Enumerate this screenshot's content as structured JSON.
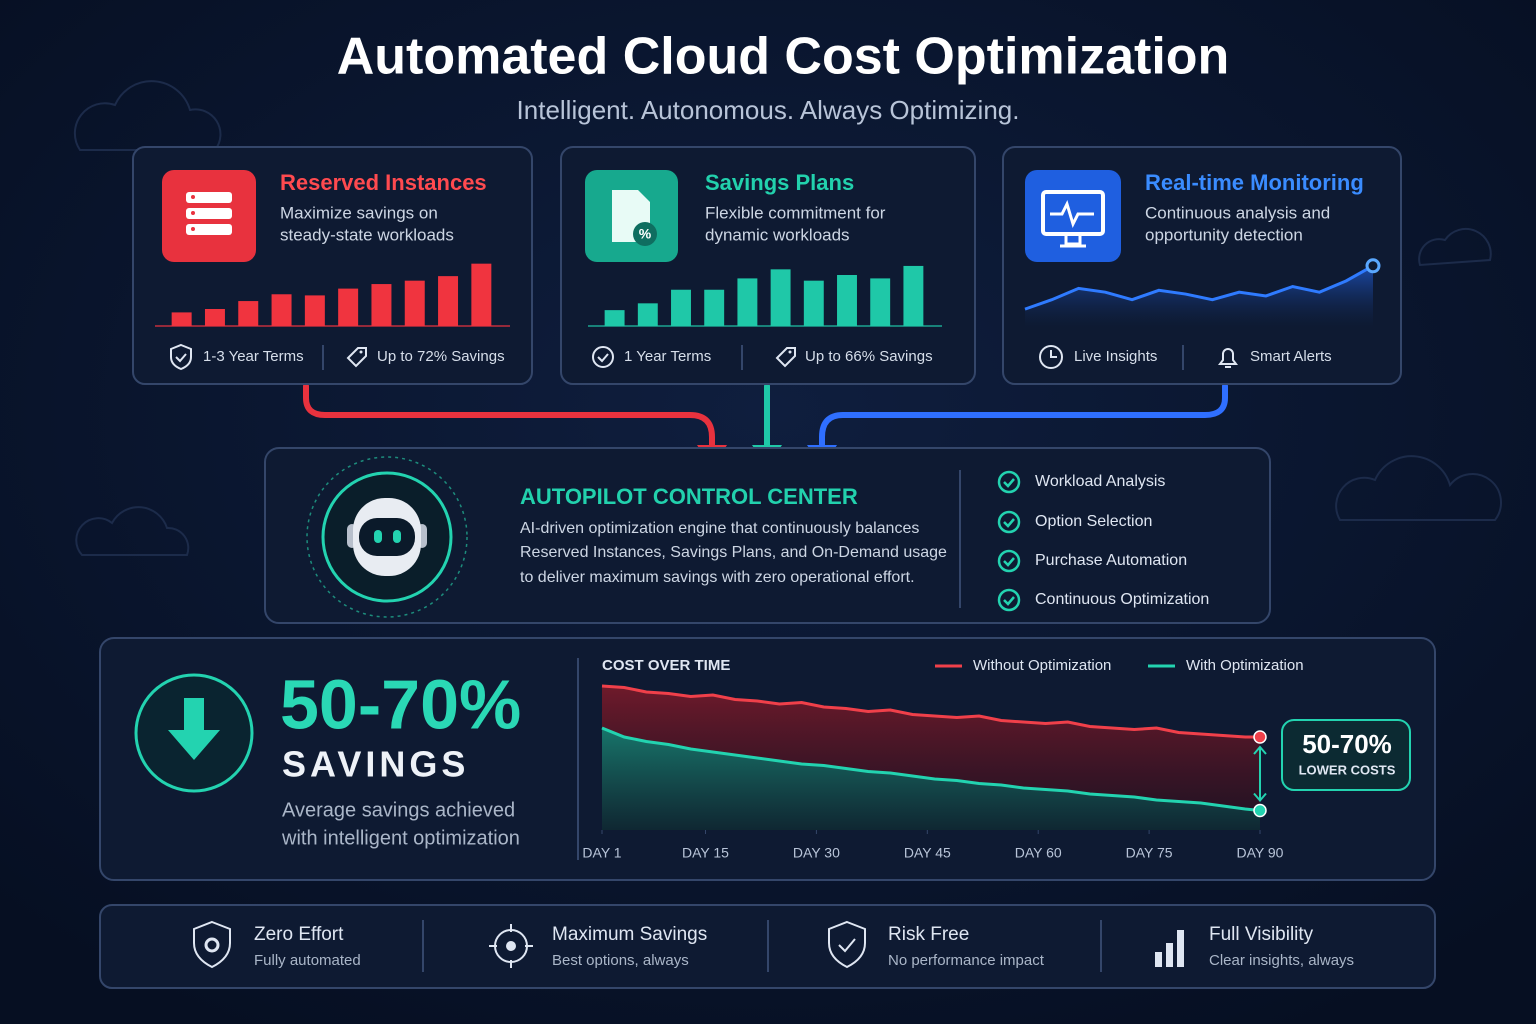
{
  "header": {
    "title": "Automated Cloud Cost Optimization",
    "subtitle": "Intelligent. Autonomous. Always Optimizing."
  },
  "cards": [
    {
      "title": "Reserved Instances",
      "description": [
        "Maximize savings on",
        "steady-state workloads"
      ],
      "features": [
        "1-3 Year Terms",
        "Up to 72% Savings"
      ]
    },
    {
      "title": "Savings Plans",
      "description": [
        "Flexible commitment for",
        "dynamic workloads"
      ],
      "features": [
        "1 Year Terms",
        "Up to 66% Savings"
      ]
    },
    {
      "title": "Real-time Monitoring",
      "description": [
        "Continuous analysis and",
        "opportunity detection"
      ],
      "features": [
        "Live Insights",
        "Smart Alerts"
      ]
    }
  ],
  "autopilot": {
    "title": "AUTOPILOT CONTROL CENTER",
    "description": [
      "AI-driven optimization engine that continuously balances",
      "Reserved Instances, Savings Plans, and On-Demand usage",
      "to deliver maximum savings with zero operational effort."
    ],
    "checklist": [
      "Workload Analysis",
      "Option Selection",
      "Purchase Automation",
      "Continuous Optimization"
    ]
  },
  "savings": {
    "value": "50-70%",
    "label": "SAVINGS",
    "description": [
      "Average savings achieved",
      "with intelligent optimization"
    ]
  },
  "benefits": [
    {
      "title": "Zero Effort",
      "subtitle": "Fully automated"
    },
    {
      "title": "Maximum Savings",
      "subtitle": "Best options, always"
    },
    {
      "title": "Risk Free",
      "subtitle": "No performance impact"
    },
    {
      "title": "Full Visibility",
      "subtitle": "Clear insights, always"
    }
  ],
  "chart_data": [
    {
      "type": "bar",
      "values": [
        12,
        15,
        22,
        28,
        27,
        33,
        37,
        40,
        44,
        55
      ],
      "color": "#f0343f",
      "ylim": [
        0,
        60
      ]
    },
    {
      "type": "bar",
      "values": [
        14,
        20,
        32,
        32,
        42,
        50,
        40,
        45,
        42,
        53
      ],
      "color": "#1fc8a8",
      "ylim": [
        0,
        60
      ]
    },
    {
      "type": "area",
      "values": [
        20,
        30,
        42,
        38,
        30,
        40,
        36,
        30,
        38,
        34,
        44,
        38,
        50,
        66
      ],
      "color": "#2f7bff",
      "ylim": [
        0,
        70
      ]
    },
    {
      "type": "line",
      "title": "COST OVER TIME",
      "x": [
        1,
        4,
        7,
        10,
        13,
        16,
        19,
        22,
        25,
        28,
        31,
        34,
        37,
        40,
        43,
        46,
        49,
        52,
        55,
        58,
        61,
        64,
        67,
        70,
        73,
        76,
        79,
        82,
        85,
        88,
        90
      ],
      "series": [
        {
          "name": "Without Optimization",
          "color": "#f0404a",
          "values": [
            96,
            95,
            92,
            91,
            89,
            90,
            87,
            86,
            84,
            85,
            82,
            81,
            79,
            80,
            77,
            76,
            75,
            76,
            73,
            72,
            71,
            72,
            69,
            68,
            67,
            68,
            65,
            64,
            63,
            62,
            62
          ]
        },
        {
          "name": "With Optimization",
          "color": "#23d3b0",
          "values": [
            68,
            62,
            59,
            57,
            54,
            52,
            50,
            48,
            46,
            44,
            43,
            41,
            39,
            38,
            36,
            34,
            33,
            31,
            30,
            28,
            27,
            26,
            24,
            23,
            22,
            20,
            19,
            18,
            16,
            14,
            13
          ]
        }
      ],
      "xlim": [
        1,
        90
      ],
      "ylim": [
        0,
        100
      ],
      "xticks": [
        {
          "value": 1,
          "label": "DAY 1"
        },
        {
          "value": 15,
          "label": "DAY 15"
        },
        {
          "value": 30,
          "label": "DAY 30"
        },
        {
          "value": 45,
          "label": "DAY 45"
        },
        {
          "value": 60,
          "label": "DAY 60"
        },
        {
          "value": 75,
          "label": "DAY 75"
        },
        {
          "value": 90,
          "label": "DAY 90"
        }
      ],
      "annotations": [
        "50-70%",
        "LOWER COSTS"
      ]
    }
  ]
}
